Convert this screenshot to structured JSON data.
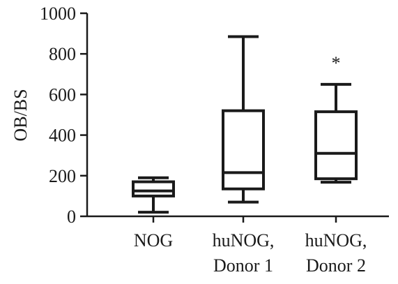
{
  "chart_data": {
    "type": "box",
    "ylabel": "OB/BS",
    "ylim": [
      0,
      1000
    ],
    "yticks": [
      "0",
      "200",
      "400",
      "600",
      "800",
      "1000"
    ],
    "categories": [
      [
        "NOG"
      ],
      [
        "huNOG,",
        "Donor 1"
      ],
      [
        "huNOG,",
        "Donor 2"
      ]
    ],
    "boxes": [
      {
        "min": 20,
        "q1": 100,
        "median": 125,
        "q3": 170,
        "max": 190,
        "annotation": ""
      },
      {
        "min": 70,
        "q1": 135,
        "median": 215,
        "q3": 520,
        "max": 885,
        "annotation": ""
      },
      {
        "min": 168,
        "q1": 185,
        "median": 310,
        "q3": 515,
        "max": 650,
        "annotation": "*"
      }
    ],
    "grid": false,
    "legend": "none"
  }
}
